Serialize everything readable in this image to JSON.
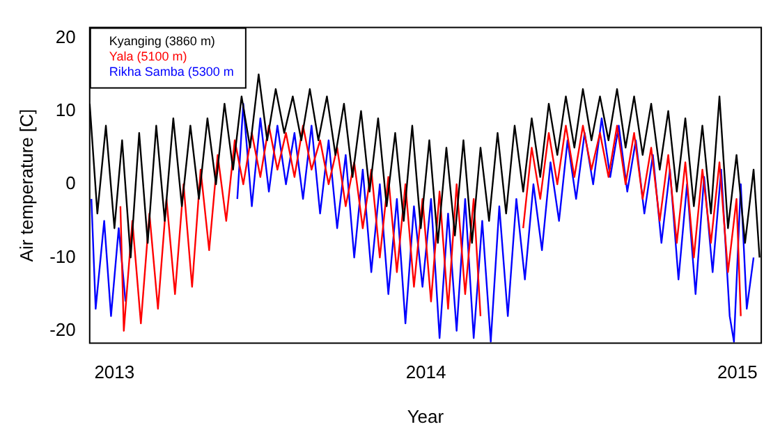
{
  "chart_data": {
    "type": "line",
    "xlabel": "Year",
    "ylabel": "Air temperature [C]",
    "xlim": [
      "2012-12-03",
      "2015-01-29"
    ],
    "xticks": [
      "2013",
      "2014",
      "2015"
    ],
    "ylim": [
      -21.7,
      21.4
    ],
    "yticks": [
      -20,
      -10,
      0,
      10,
      20
    ],
    "grid": false,
    "legend": "top left",
    "marker": "none",
    "line_style": "solid",
    "series": [
      {
        "name": "Kyanging (3860 m)",
        "color": "#000000",
        "x": [
          "2012-12-03",
          "2012-12-12",
          "2012-12-22",
          "2013-01-01",
          "2013-01-10",
          "2013-01-20",
          "2013-01-30",
          "2013-02-09",
          "2013-02-19",
          "2013-03-01",
          "2013-03-11",
          "2013-03-21",
          "2013-03-31",
          "2013-04-10",
          "2013-04-20",
          "2013-04-30",
          "2013-05-10",
          "2013-05-20",
          "2013-05-30",
          "2013-06-09",
          "2013-06-19",
          "2013-06-29",
          "2013-07-09",
          "2013-07-19",
          "2013-07-29",
          "2013-08-08",
          "2013-08-18",
          "2013-08-28",
          "2013-09-07",
          "2013-09-17",
          "2013-09-27",
          "2013-10-07",
          "2013-10-17",
          "2013-10-27",
          "2013-11-06",
          "2013-11-16",
          "2013-11-26",
          "2013-12-06",
          "2013-12-16",
          "2013-12-26",
          "2014-01-05",
          "2014-01-15",
          "2014-01-25",
          "2014-02-04",
          "2014-02-14",
          "2014-02-24",
          "2014-03-06",
          "2014-03-16",
          "2014-03-26",
          "2014-04-05",
          "2014-04-15",
          "2014-04-25",
          "2014-05-05",
          "2014-05-15",
          "2014-05-25",
          "2014-06-04",
          "2014-06-14",
          "2014-06-24",
          "2014-07-04",
          "2014-07-14",
          "2014-07-24",
          "2014-08-03",
          "2014-08-13",
          "2014-08-23",
          "2014-09-02",
          "2014-09-12",
          "2014-09-22",
          "2014-10-02",
          "2014-10-12",
          "2014-10-22",
          "2014-11-01",
          "2014-11-11",
          "2014-11-21",
          "2014-12-01",
          "2014-12-11",
          "2014-12-21",
          "2014-12-31",
          "2015-01-10",
          "2015-01-20",
          "2015-01-27"
        ],
        "values": [
          11,
          -4,
          8,
          -6,
          6,
          -10,
          7,
          -8,
          8,
          -5,
          9,
          -3,
          8,
          -2,
          9,
          0,
          11,
          2,
          12,
          5,
          15,
          6,
          13,
          7,
          12,
          6,
          13,
          6,
          12,
          4,
          11,
          1,
          10,
          -1,
          9,
          -3,
          7,
          -5,
          8,
          -6,
          6,
          -8,
          5,
          -7,
          6,
          -8,
          5,
          -5,
          7,
          -4,
          8,
          -1,
          9,
          1,
          11,
          4,
          12,
          5,
          13,
          6,
          12,
          6,
          13,
          5,
          12,
          4,
          11,
          2,
          10,
          -1,
          9,
          -3,
          8,
          -4,
          12,
          -6,
          4,
          -8,
          2,
          -10
        ]
      },
      {
        "name": "Yala (5100 m)",
        "color": "#ff0000",
        "x": [
          "2013-01-08",
          "2013-01-12",
          "2013-01-22",
          "2013-02-01",
          "2013-02-11",
          "2013-02-21",
          "2013-03-03",
          "2013-03-13",
          "2013-03-23",
          "2013-04-02",
          "2013-04-12",
          "2013-04-22",
          "2013-05-02",
          "2013-05-12",
          "2013-05-22",
          "2013-06-01",
          "2013-06-11",
          "2013-06-21",
          "2013-07-01",
          "2013-07-11",
          "2013-07-21",
          "2013-07-31",
          "2013-08-10",
          "2013-08-20",
          "2013-08-30",
          "2013-09-09",
          "2013-09-19",
          "2013-09-29",
          "2013-10-09",
          "2013-10-19",
          "2013-10-29",
          "2013-11-08",
          "2013-11-18",
          "2013-11-28",
          "2013-12-08",
          "2013-12-18",
          "2013-12-28",
          "2014-01-07",
          "2014-01-17",
          "2014-01-27",
          "2014-02-06",
          "2014-02-16",
          "2014-02-26",
          "2014-03-06",
          "2014-04-01",
          "2014-04-25",
          "2014-05-05",
          "2014-05-15",
          "2014-05-25",
          "2014-06-04",
          "2014-06-14",
          "2014-06-24",
          "2014-07-04",
          "2014-07-14",
          "2014-07-24",
          "2014-08-03",
          "2014-08-13",
          "2014-08-23",
          "2014-09-02",
          "2014-09-12",
          "2014-09-22",
          "2014-10-02",
          "2014-10-12",
          "2014-10-22",
          "2014-11-01",
          "2014-11-11",
          "2014-11-21",
          "2014-12-01",
          "2014-12-11",
          "2014-12-21",
          "2014-12-31",
          "2015-01-05"
        ],
        "values": [
          -3,
          -20,
          -5,
          -19,
          -4,
          -17,
          -2,
          -15,
          0,
          -14,
          2,
          -9,
          4,
          -5,
          6,
          0,
          7,
          1,
          8,
          2,
          7,
          1,
          8,
          2,
          6,
          0,
          5,
          -3,
          3,
          -6,
          2,
          -10,
          1,
          -12,
          0,
          -14,
          -2,
          -16,
          -1,
          -17,
          0,
          -15,
          -2,
          -18,
          null,
          -6,
          5,
          -2,
          7,
          0,
          8,
          1,
          8,
          2,
          7,
          1,
          8,
          0,
          7,
          -2,
          5,
          -5,
          4,
          -8,
          3,
          -10,
          2,
          -8,
          3,
          -12,
          -2,
          -18
        ]
      },
      {
        "name": "Rikha Samba (5300 m",
        "color": "#0000ff",
        "x": [
          "2012-12-05",
          "2012-12-10",
          "2012-12-20",
          "2012-12-28",
          "2013-01-06",
          "2013-01-14",
          "2013-03-01",
          "2013-05-25",
          "2013-06-01",
          "2013-06-11",
          "2013-06-21",
          "2013-07-01",
          "2013-07-11",
          "2013-07-21",
          "2013-07-31",
          "2013-08-10",
          "2013-08-20",
          "2013-08-30",
          "2013-09-09",
          "2013-09-19",
          "2013-09-29",
          "2013-10-09",
          "2013-10-19",
          "2013-10-29",
          "2013-11-08",
          "2013-11-18",
          "2013-11-28",
          "2013-12-08",
          "2013-12-18",
          "2013-12-28",
          "2014-01-07",
          "2014-01-17",
          "2014-01-27",
          "2014-02-06",
          "2014-02-16",
          "2014-02-26",
          "2014-03-08",
          "2014-03-18",
          "2014-03-28",
          "2014-04-07",
          "2014-04-17",
          "2014-04-27",
          "2014-05-07",
          "2014-05-17",
          "2014-05-27",
          "2014-06-06",
          "2014-06-16",
          "2014-06-26",
          "2014-07-06",
          "2014-07-16",
          "2014-07-26",
          "2014-08-05",
          "2014-08-15",
          "2014-08-25",
          "2014-09-04",
          "2014-09-14",
          "2014-09-24",
          "2014-10-04",
          "2014-10-14",
          "2014-10-24",
          "2014-11-03",
          "2014-11-13",
          "2014-11-23",
          "2014-12-03",
          "2014-12-13",
          "2014-12-23",
          "2014-12-28",
          "2015-01-05",
          "2015-01-12",
          "2015-01-20"
        ],
        "values": [
          -2,
          -17,
          -5,
          -18,
          -6,
          -16,
          null,
          -2,
          11,
          -3,
          9,
          -1,
          8,
          0,
          7,
          -2,
          8,
          -4,
          6,
          -6,
          4,
          -10,
          2,
          -12,
          0,
          -15,
          -2,
          -19,
          -3,
          -14,
          -2,
          -21,
          -4,
          -20,
          -2,
          -21,
          -5,
          -21.5,
          -3,
          -18,
          -2,
          -13,
          0,
          -9,
          3,
          -5,
          6,
          -2,
          7,
          0,
          9,
          1,
          8,
          -1,
          6,
          -4,
          4,
          -8,
          2,
          -13,
          0,
          -15,
          1,
          -12,
          2,
          -18,
          -21.5,
          0,
          -17,
          -10
        ]
      }
    ]
  }
}
